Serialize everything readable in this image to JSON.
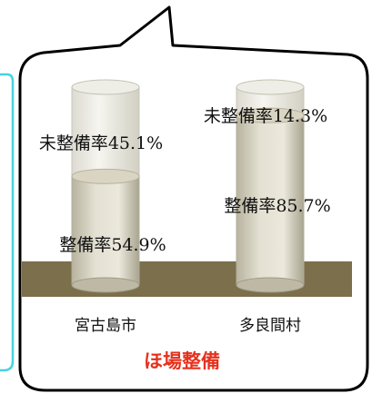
{
  "chart_data": {
    "type": "bar",
    "stacked": true,
    "caption": "ほ場整備",
    "categories": [
      "宮古島市",
      "多良間村"
    ],
    "series": [
      {
        "name": "整備率",
        "values": [
          54.9,
          85.7
        ],
        "labels": [
          "整備率54.9%",
          "整備率85.7%"
        ]
      },
      {
        "name": "未整備率",
        "values": [
          45.1,
          14.3
        ],
        "labels": [
          "未整備率45.1%",
          "未整備率14.3%"
        ]
      }
    ],
    "ylim": [
      0,
      100
    ],
    "colors": {
      "ground": "#7b6f4c",
      "caption": "#e5321e",
      "filled_top": "#d9d5c2",
      "empty_top": "#efeee6",
      "cyan_frame": "#45d2e2"
    }
  }
}
